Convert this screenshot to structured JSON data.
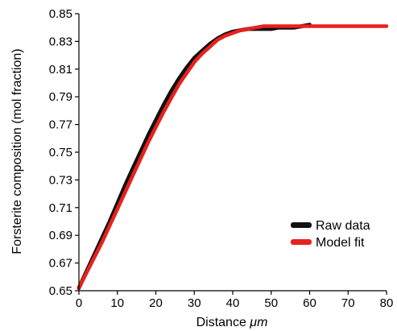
{
  "chart_data": {
    "type": "line",
    "title": "",
    "xlabel_prefix": "Distance ",
    "xlabel_unit": "μm",
    "ylabel": "Forsterite composition (mol fraction)",
    "xlim": [
      0,
      80
    ],
    "ylim": [
      0.65,
      0.85
    ],
    "xticks": [
      "0",
      "10",
      "20",
      "30",
      "40",
      "50",
      "60",
      "70",
      "80"
    ],
    "yticks": [
      "0.65",
      "0.67",
      "0.69",
      "0.71",
      "0.73",
      "0.75",
      "0.77",
      "0.79",
      "0.81",
      "0.83",
      "0.85"
    ],
    "grid": false,
    "legend_position": "lower-right",
    "series": [
      {
        "name": "Raw data",
        "color": "#111111",
        "x": [
          0,
          2,
          4,
          6,
          8,
          10,
          12,
          14,
          16,
          18,
          20,
          22,
          24,
          26,
          28,
          30,
          32,
          34,
          36,
          38,
          40,
          42,
          44,
          46,
          48,
          50,
          52,
          54,
          56,
          58,
          60
        ],
        "y": [
          0.652,
          0.664,
          0.676,
          0.688,
          0.7,
          0.713,
          0.726,
          0.738,
          0.75,
          0.762,
          0.773,
          0.784,
          0.794,
          0.803,
          0.811,
          0.818,
          0.823,
          0.828,
          0.832,
          0.835,
          0.837,
          0.838,
          0.839,
          0.839,
          0.839,
          0.839,
          0.84,
          0.84,
          0.84,
          0.841,
          0.842
        ]
      },
      {
        "name": "Model fit",
        "color": "#e8211c",
        "x": [
          0,
          2,
          4,
          6,
          8,
          10,
          12,
          14,
          16,
          18,
          20,
          22,
          24,
          26,
          28,
          30,
          32,
          34,
          36,
          38,
          40,
          42,
          44,
          46,
          48,
          50,
          52,
          54,
          56,
          58,
          60,
          65,
          70,
          75,
          80
        ],
        "y": [
          0.652,
          0.663,
          0.674,
          0.685,
          0.697,
          0.709,
          0.721,
          0.733,
          0.745,
          0.757,
          0.768,
          0.779,
          0.789,
          0.799,
          0.807,
          0.815,
          0.821,
          0.826,
          0.831,
          0.834,
          0.836,
          0.838,
          0.839,
          0.84,
          0.841,
          0.841,
          0.841,
          0.841,
          0.841,
          0.841,
          0.841,
          0.841,
          0.841,
          0.841,
          0.841
        ]
      }
    ]
  }
}
